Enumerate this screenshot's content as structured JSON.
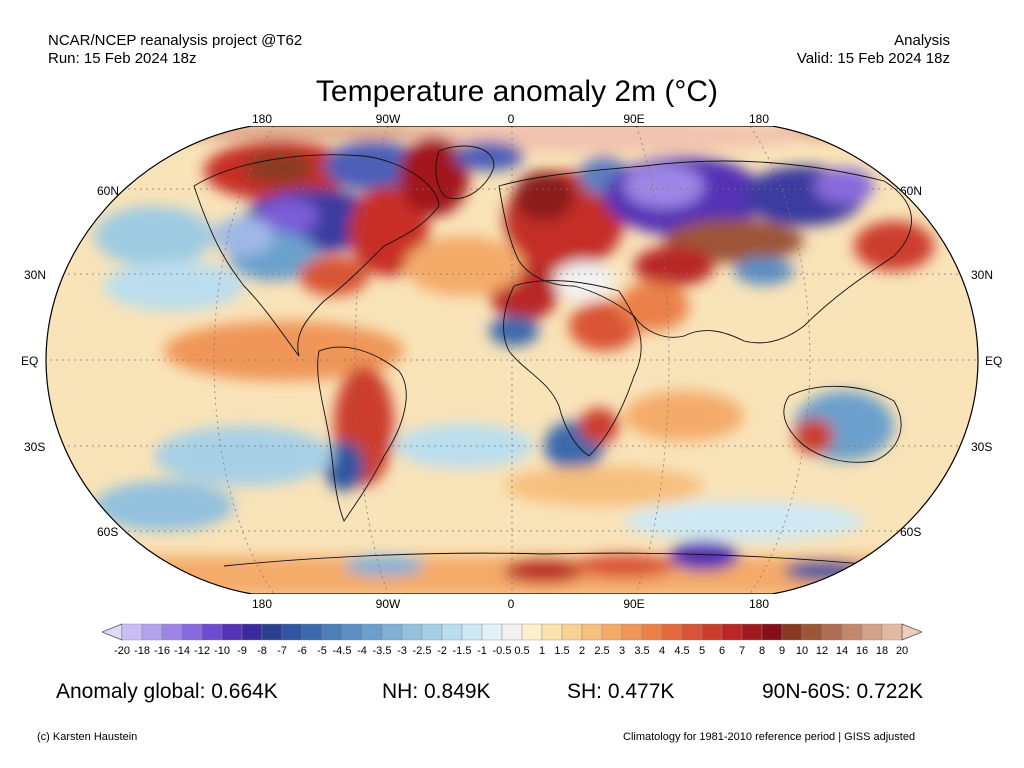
{
  "header": {
    "project": "NCAR/NCEP reanalysis project @T62",
    "run": "Run: 15 Feb 2024 18z",
    "type": "Analysis",
    "valid": "Valid: 15 Feb 2024 18z"
  },
  "title": "Temperature anomaly 2m (°C)",
  "map": {
    "lon_labels_top": [
      "180",
      "90W",
      "0",
      "90E",
      "180"
    ],
    "lon_labels_bottom": [
      "180",
      "90W",
      "0",
      "90E",
      "180"
    ],
    "lat_labels_left": [
      "60N",
      "30N",
      "EQ",
      "30S",
      "60S"
    ],
    "lat_labels_right": [
      "60N",
      "30N",
      "EQ",
      "30S",
      "60S"
    ],
    "projection": "Robinson",
    "background_anomaly_color": "#f9e3b8"
  },
  "colorbar": {
    "labels": [
      "-20",
      "-18",
      "-16",
      "-14",
      "-12",
      "-10",
      "-9",
      "-8",
      "-7",
      "-6",
      "-5",
      "-4.5",
      "-4",
      "-3.5",
      "-3",
      "-2.5",
      "-2",
      "-1.5",
      "-1",
      "-0.5",
      "0.5",
      "1",
      "1.5",
      "2",
      "2.5",
      "3",
      "3.5",
      "4",
      "4.5",
      "5",
      "6",
      "7",
      "8",
      "9",
      "10",
      "12",
      "14",
      "16",
      "18",
      "20"
    ],
    "colors": [
      "#c9bdf5",
      "#b3a2ee",
      "#9d86e6",
      "#876ade",
      "#6e4cd0",
      "#5533b5",
      "#3a2a9a",
      "#2c3f8f",
      "#2f56a0",
      "#3b69ad",
      "#4b7db9",
      "#5b8fc4",
      "#6ca0cc",
      "#7fb0d5",
      "#93c1de",
      "#a7d0e6",
      "#bbdeee",
      "#cfe9f4",
      "#e3f2f8",
      "#f2f2f2",
      "#fbefcc",
      "#fbe2ad",
      "#f9d193",
      "#f7bf7e",
      "#f4ab6a",
      "#f09658",
      "#eb8049",
      "#e36a3e",
      "#d95436",
      "#cc3d2e",
      "#b92826",
      "#a2181f",
      "#86101a",
      "#8a3a22",
      "#9d5538",
      "#b06e52",
      "#c2876c",
      "#d3a088",
      "#e2b9a3"
    ],
    "under_color": "#e0daf9",
    "over_color": "#f0cbbb"
  },
  "stats": {
    "global": "Anomaly global: 0.664K",
    "nh": "NH: 0.849K",
    "sh": "SH: 0.477K",
    "arctic": "90N-60S: 0.722K"
  },
  "footer": {
    "credit": "(c) Karsten Haustein",
    "note": "Climatology for 1981-2010 reference period | GISS adjusted"
  }
}
